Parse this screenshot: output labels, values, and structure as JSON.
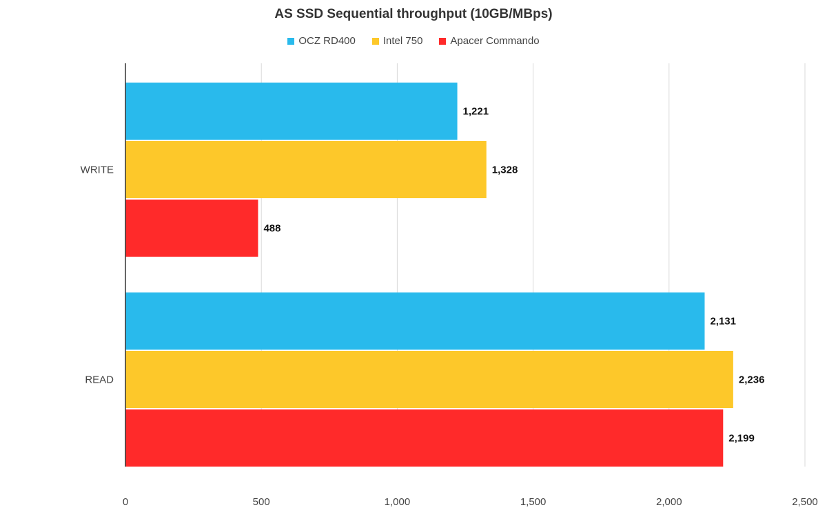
{
  "chart_data": {
    "type": "bar",
    "orientation": "horizontal",
    "title": "AS SSD Sequential throughput (10GB/MBps)",
    "xlabel": "",
    "ylabel": "",
    "categories": [
      "WRITE",
      "READ"
    ],
    "series": [
      {
        "name": "OCZ RD400",
        "color": "#29BAEC",
        "values": [
          1221,
          2131
        ],
        "labels": [
          "1,221",
          "2,131"
        ]
      },
      {
        "name": "Intel 750",
        "color": "#FDC82A",
        "values": [
          1328,
          2236
        ],
        "labels": [
          "1,328",
          "2,236"
        ]
      },
      {
        "name": "Apacer Commando",
        "color": "#FF2A2A",
        "values": [
          488,
          2199
        ],
        "labels": [
          "488",
          "2,199"
        ]
      }
    ],
    "xlim": [
      0,
      2500
    ],
    "xticks": [
      0,
      500,
      1000,
      1500,
      2000,
      2500
    ],
    "xtick_labels": [
      "0",
      "500",
      "1,000",
      "1,500",
      "2,000",
      "2,500"
    ],
    "grid": true,
    "legend_position": "top"
  }
}
